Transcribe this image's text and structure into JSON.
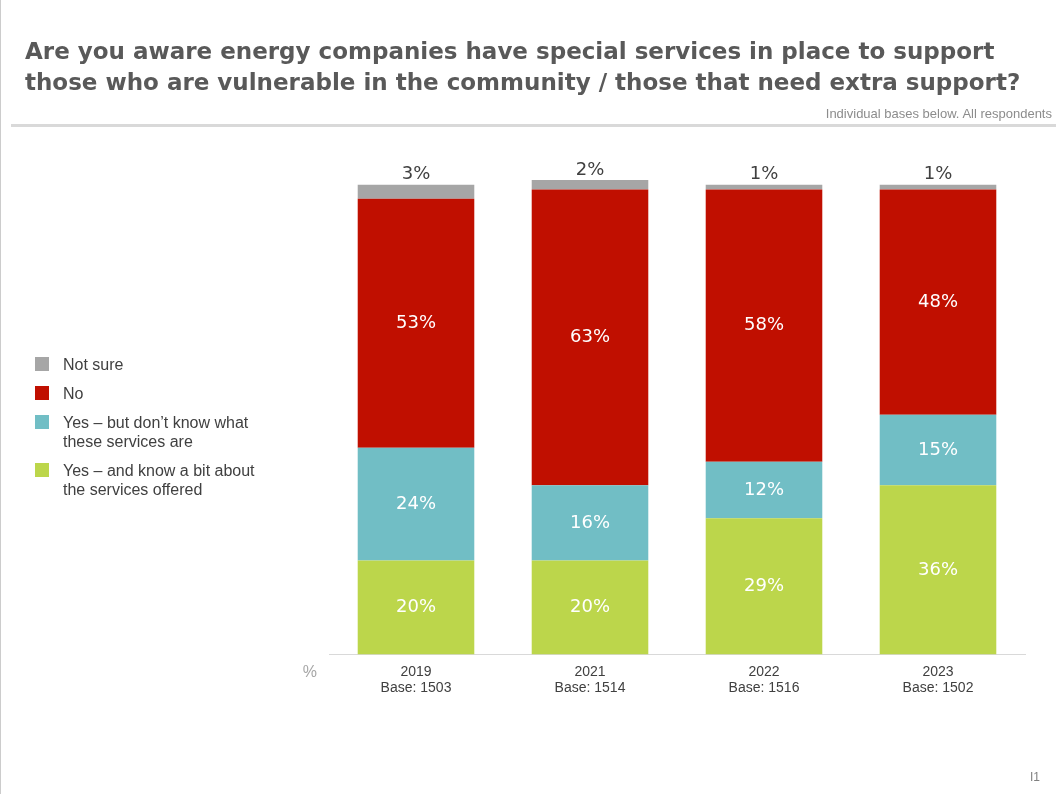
{
  "chart_data": {
    "type": "bar",
    "stacked": true,
    "title": "Are you aware energy companies have special services in place to support those who are vulnerable in the community / those that need extra support?",
    "annotations": [
      "Individual bases below. All respondents",
      "I1"
    ],
    "ylabel": "%",
    "categories": [
      "2019\nBase: 1503",
      "2021\nBase: 1514",
      "2022\nBase: 1516",
      "2023\nBase: 1502"
    ],
    "series": [
      {
        "name": "Yes – and know a bit about the services offered",
        "color": "#bcd64b",
        "values": [
          20,
          20,
          29,
          36
        ],
        "value_labels": [
          "20%",
          "20%",
          "29%",
          "36%"
        ]
      },
      {
        "name": "Yes – but don’t know what these services are",
        "color": "#71bec5",
        "values": [
          24,
          16,
          12,
          15
        ],
        "value_labels": [
          "24%",
          "16%",
          "12%",
          "15%"
        ]
      },
      {
        "name": "No",
        "color": "#c00f00",
        "values": [
          53,
          63,
          58,
          48
        ],
        "value_labels": [
          "53%",
          "63%",
          "58%",
          "48%"
        ]
      },
      {
        "name": "Not sure",
        "color": "#a6a6a6",
        "values": [
          3,
          2,
          1,
          1
        ],
        "value_labels": [
          "3%",
          "2%",
          "1%",
          "1%"
        ]
      }
    ],
    "tick_labels": "x",
    "grid": false,
    "legend": "left"
  }
}
